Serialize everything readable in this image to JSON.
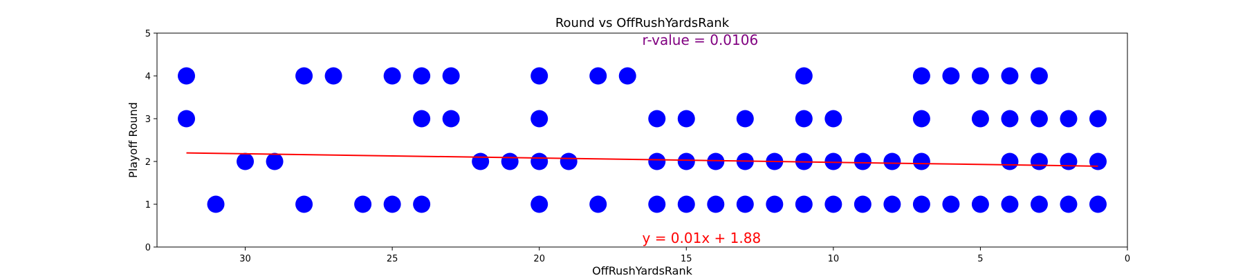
{
  "chart_data": {
    "type": "scatter",
    "title": "Round vs OffRushYardsRank",
    "xlabel": "OffRushYardsRank",
    "ylabel": "Playoff Round",
    "xlim": [
      33,
      0
    ],
    "ylim": [
      0,
      5
    ],
    "x_inverted": true,
    "x_ticks": [
      30,
      25,
      20,
      15,
      10,
      5,
      0
    ],
    "y_ticks": [
      0,
      1,
      2,
      3,
      4,
      5
    ],
    "grid": false,
    "point_color": "#0000ff",
    "fit_color": "#ff0000",
    "r_color": "#800080",
    "points": [
      [
        32,
        4
      ],
      [
        32,
        3
      ],
      [
        31,
        1
      ],
      [
        30,
        2
      ],
      [
        29,
        2
      ],
      [
        28,
        4
      ],
      [
        28,
        1
      ],
      [
        27,
        4
      ],
      [
        26,
        1
      ],
      [
        25,
        4
      ],
      [
        25,
        1
      ],
      [
        24,
        4
      ],
      [
        24,
        3
      ],
      [
        24,
        1
      ],
      [
        23,
        4
      ],
      [
        23,
        3
      ],
      [
        22,
        2
      ],
      [
        21,
        2
      ],
      [
        20,
        4
      ],
      [
        20,
        3
      ],
      [
        20,
        2
      ],
      [
        20,
        1
      ],
      [
        19,
        2
      ],
      [
        18,
        4
      ],
      [
        18,
        1
      ],
      [
        17,
        4
      ],
      [
        16,
        3
      ],
      [
        16,
        2
      ],
      [
        16,
        1
      ],
      [
        15,
        3
      ],
      [
        15,
        2
      ],
      [
        15,
        1
      ],
      [
        14,
        2
      ],
      [
        14,
        1
      ],
      [
        13,
        3
      ],
      [
        13,
        2
      ],
      [
        13,
        1
      ],
      [
        12,
        2
      ],
      [
        12,
        1
      ],
      [
        11,
        4
      ],
      [
        11,
        3
      ],
      [
        11,
        2
      ],
      [
        11,
        1
      ],
      [
        10,
        3
      ],
      [
        10,
        2
      ],
      [
        10,
        1
      ],
      [
        9,
        2
      ],
      [
        9,
        1
      ],
      [
        8,
        2
      ],
      [
        8,
        1
      ],
      [
        7,
        4
      ],
      [
        7,
        3
      ],
      [
        7,
        2
      ],
      [
        7,
        1
      ],
      [
        6,
        4
      ],
      [
        6,
        1
      ],
      [
        5,
        4
      ],
      [
        5,
        3
      ],
      [
        5,
        1
      ],
      [
        4,
        4
      ],
      [
        4,
        3
      ],
      [
        4,
        2
      ],
      [
        4,
        1
      ],
      [
        3,
        4
      ],
      [
        3,
        3
      ],
      [
        3,
        2
      ],
      [
        3,
        1
      ],
      [
        2,
        3
      ],
      [
        2,
        2
      ],
      [
        2,
        1
      ],
      [
        1,
        3
      ],
      [
        1,
        2
      ],
      [
        1,
        1
      ]
    ],
    "fit": {
      "slope": 0.01,
      "intercept": 1.88,
      "x_range": [
        32,
        1
      ]
    },
    "fit_label": "y = 0.01x + 1.88",
    "r_label": "r-value = 0.0106"
  }
}
